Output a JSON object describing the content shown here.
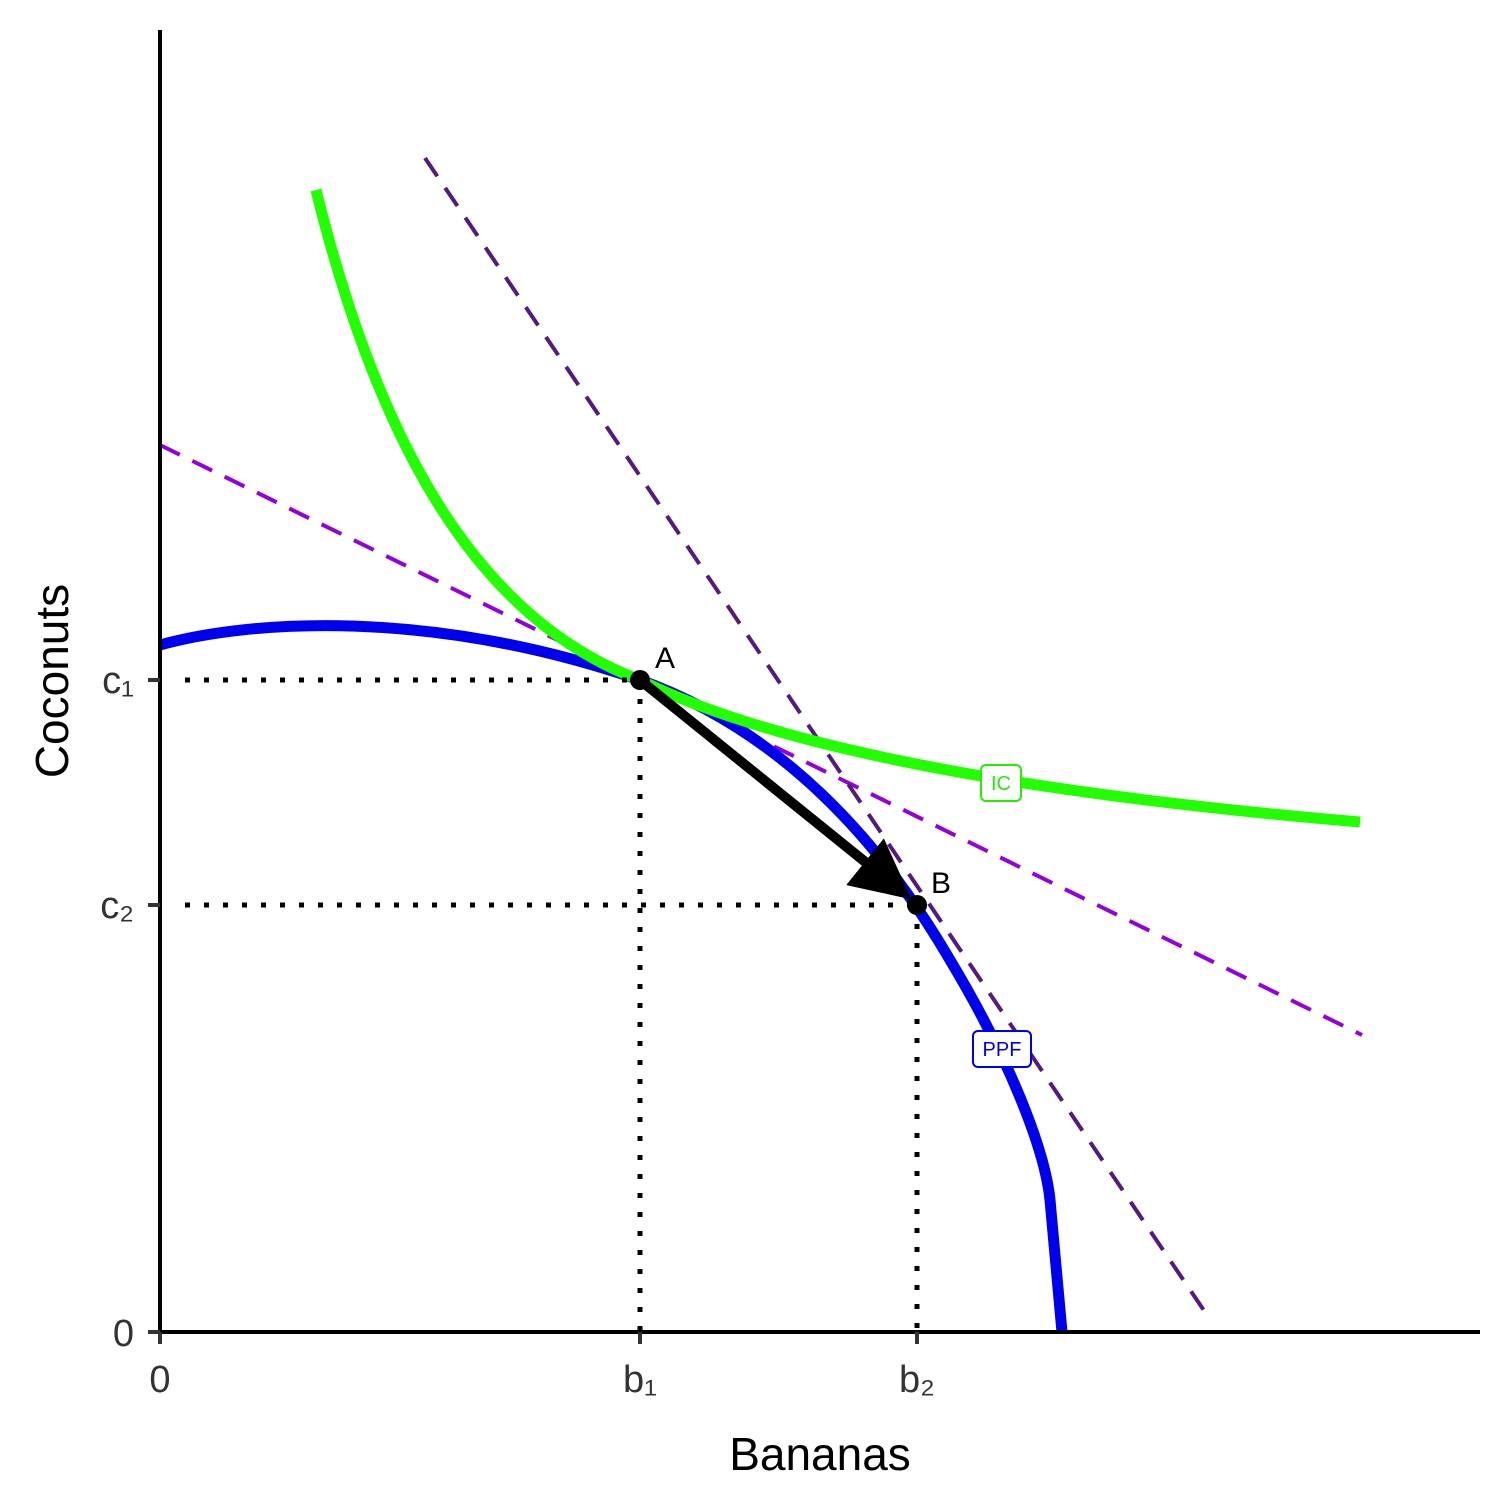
{
  "axes": {
    "x_label": "Bananas",
    "y_label": "Coconuts",
    "x_ticks": [
      "0",
      "b₁",
      "b₂"
    ],
    "y_ticks": [
      "0",
      "c₂",
      "c₁"
    ]
  },
  "points": [
    {
      "label": "A"
    },
    {
      "label": "B"
    }
  ],
  "curves": [
    {
      "label": "IC"
    },
    {
      "label": "PPF"
    }
  ]
}
